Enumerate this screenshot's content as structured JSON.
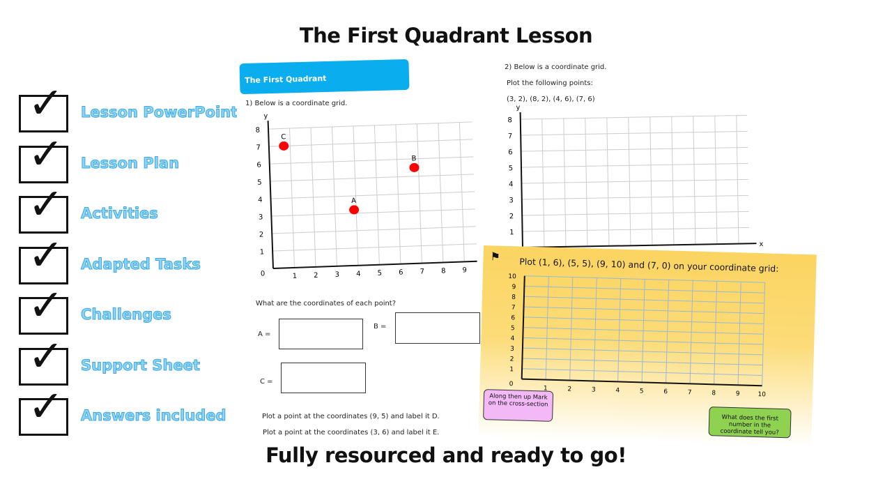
{
  "title": "The First Quadrant Lesson",
  "footer": "Fully resourced and ready to go!",
  "checklist": [
    {
      "label": "Lesson PowerPoint",
      "checked": true
    },
    {
      "label": "Lesson Plan",
      "checked": true
    },
    {
      "label": "Activities",
      "checked": true
    },
    {
      "label": "Adapted Tasks",
      "checked": true
    },
    {
      "label": "Challenges",
      "checked": true
    },
    {
      "label": "Support Sheet",
      "checked": true
    },
    {
      "label": "Answers included",
      "checked": true
    }
  ],
  "colors": {
    "header_blue": "#0aaeee",
    "label_blue": "#8fd3f5",
    "point_red": "#ff0000",
    "card_yellow": "#fbd461",
    "bubble_pink": "#f3b9f7",
    "bubble_green": "#8fd150"
  },
  "icons": {
    "check": "checkmark-icon",
    "signpost": "signpost-icon"
  },
  "worksheet1": {
    "header": "The First Quadrant",
    "q1": "1)   Below is a coordinate grid.",
    "grid": {
      "x_label": "",
      "y_label": "y",
      "x_max": 9,
      "y_max": 8,
      "x_ticks": [
        "1",
        "2",
        "3",
        "4",
        "5",
        "6",
        "7",
        "8",
        "9"
      ],
      "y_ticks": [
        "1",
        "2",
        "3",
        "4",
        "5",
        "6",
        "7",
        "8"
      ],
      "origin": "0",
      "points": [
        {
          "label": "C",
          "x": 0.7,
          "y": 7
        },
        {
          "label": "B",
          "x": 6.8,
          "y": 5.5
        },
        {
          "label": "A",
          "x": 3.9,
          "y": 3.2
        }
      ]
    },
    "q_coords": "What are the coordinates of each point?",
    "a_label": "A =",
    "b_label": "B =",
    "c_label": "C =",
    "task_d": "Plot a point at the coordinates (9, 5) and label it D.",
    "task_e": "Plot a point at the coordinates (3, 6) and label it E."
  },
  "worksheet2": {
    "q2": "2) Below is a coordinate grid.",
    "instruction": "Plot the following points:",
    "points_text": "(3, 2), (8, 2), (4, 6), (7, 6)",
    "grid": {
      "x_label": "x",
      "y_label": "y",
      "y_ticks": [
        "1",
        "2",
        "3",
        "4",
        "5",
        "6",
        "7",
        "8"
      ]
    }
  },
  "card": {
    "prompt": "Plot (1, 6), (5, 5), (9, 10) and (7, 0) on your coordinate grid:",
    "grid": {
      "x_ticks": [
        "1",
        "2",
        "3",
        "4",
        "5",
        "6",
        "7",
        "8",
        "9",
        "10"
      ],
      "y_ticks": [
        "1",
        "2",
        "3",
        "4",
        "5",
        "6",
        "7",
        "8",
        "9",
        "10"
      ],
      "origin": "0"
    },
    "hint_pink": "Along then up Mark on the cross-section",
    "hint_green": "What does the first number in the coordinate tell you?"
  }
}
